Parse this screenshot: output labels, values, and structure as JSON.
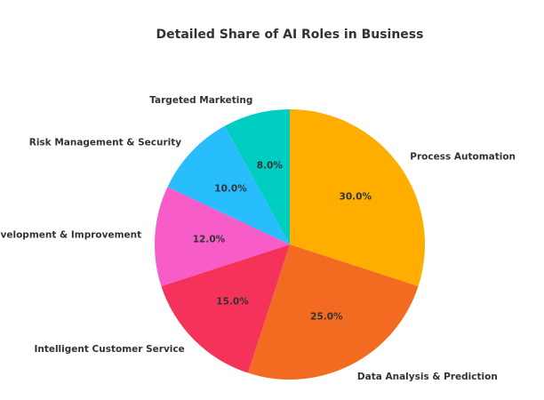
{
  "chart_data": {
    "type": "pie",
    "title": "Detailed Share of AI Roles in Business",
    "start_angle_deg": 90,
    "direction": "clockwise",
    "slices": [
      {
        "label": "Process Automation",
        "value": 30.0,
        "pct_text": "30.0%",
        "color": "#FFAE00"
      },
      {
        "label": "Data Analysis & Prediction",
        "value": 25.0,
        "pct_text": "25.0%",
        "color": "#F26B21"
      },
      {
        "label": "Intelligent Customer Service",
        "value": 15.0,
        "pct_text": "15.0%",
        "color": "#F5325A"
      },
      {
        "label": "Product Development & Improvement",
        "value": 12.0,
        "pct_text": "12.0%",
        "color": "#F75CC8"
      },
      {
        "label": "Risk Management & Security",
        "value": 10.0,
        "pct_text": "10.0%",
        "color": "#28BDFD"
      },
      {
        "label": "Targeted Marketing",
        "value": 8.0,
        "pct_text": "8.0%",
        "color": "#00CDC1"
      }
    ]
  }
}
